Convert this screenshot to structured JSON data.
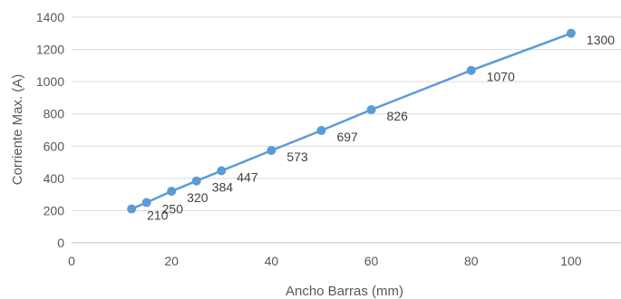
{
  "chart_data": {
    "type": "scatter",
    "xlabel": "Ancho Barras (mm)",
    "ylabel": "Corriente Max. (A)",
    "xlim": [
      0,
      110
    ],
    "ylim": [
      0,
      1400
    ],
    "x_ticks": [
      "0",
      "20",
      "40",
      "60",
      "80",
      "100"
    ],
    "y_ticks": [
      "0",
      "200",
      "400",
      "600",
      "800",
      "1000",
      "1200",
      "1400"
    ],
    "grid": "horizontal",
    "legend": "none",
    "series": [
      {
        "color": "#5b9bd5",
        "x": [
          12,
          15,
          20,
          25,
          30,
          40,
          50,
          60,
          80,
          100
        ],
        "y": [
          210,
          250,
          320,
          384,
          447,
          573,
          697,
          826,
          1070,
          1300
        ],
        "labels": [
          "210",
          "250",
          "320",
          "384",
          "447",
          "573",
          "697",
          "826",
          "1070",
          "1300"
        ]
      }
    ]
  }
}
